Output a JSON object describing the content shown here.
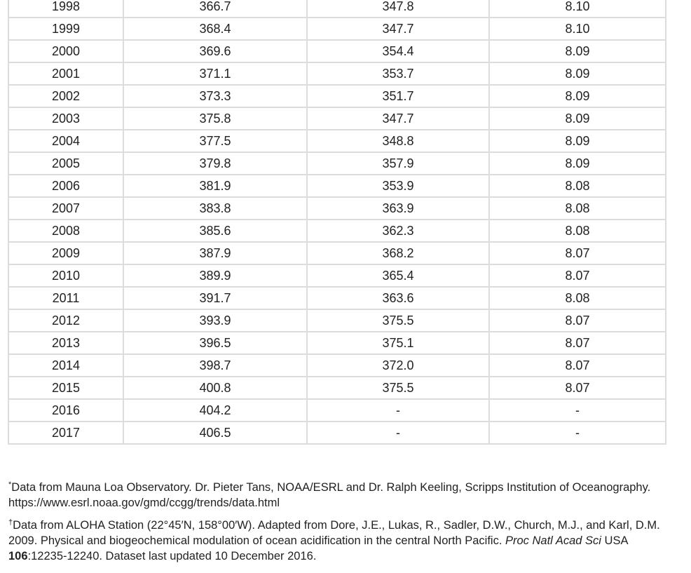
{
  "table": {
    "rows": [
      [
        "1998",
        "366.7",
        "347.8",
        "8.10"
      ],
      [
        "1999",
        "368.4",
        "347.7",
        "8.10"
      ],
      [
        "2000",
        "369.6",
        "354.4",
        "8.09"
      ],
      [
        "2001",
        "371.1",
        "353.7",
        "8.09"
      ],
      [
        "2002",
        "373.3",
        "351.7",
        "8.09"
      ],
      [
        "2003",
        "375.8",
        "347.7",
        "8.09"
      ],
      [
        "2004",
        "377.5",
        "348.8",
        "8.09"
      ],
      [
        "2005",
        "379.8",
        "357.9",
        "8.09"
      ],
      [
        "2006",
        "381.9",
        "353.9",
        "8.08"
      ],
      [
        "2007",
        "383.8",
        "363.9",
        "8.08"
      ],
      [
        "2008",
        "385.6",
        "362.3",
        "8.08"
      ],
      [
        "2009",
        "387.9",
        "368.2",
        "8.07"
      ],
      [
        "2010",
        "389.9",
        "365.4",
        "8.07"
      ],
      [
        "2011",
        "391.7",
        "363.6",
        "8.08"
      ],
      [
        "2012",
        "393.9",
        "375.5",
        "8.07"
      ],
      [
        "2013",
        "396.5",
        "375.1",
        "8.07"
      ],
      [
        "2014",
        "398.7",
        "372.0",
        "8.07"
      ],
      [
        "2015",
        "400.8",
        "375.5",
        "8.07"
      ],
      [
        "2016",
        "404.2",
        "-",
        "-"
      ],
      [
        "2017",
        "406.5",
        "-",
        "-"
      ]
    ]
  },
  "footnotes": {
    "mauna_loa": {
      "marker": "*",
      "text": "Data from Mauna Loa Observatory. Dr. Pieter Tans, NOAA/ESRL and Dr. Ralph Keeling, Scripps Institution of Oceanography. https://www.esrl.noaa.gov/gmd/ccgg/trends/data.html"
    },
    "aloha": {
      "marker": "†",
      "text_1": "Data from ALOHA Station (22°45′N, 158°00′W). Adapted from Dore, J.E., Lukas, R., Sadler, D.W., Church, M.J., and Karl, D.M. 2009. Physical and biogeochemical modulation of ocean acidification in the central North Pacific. ",
      "journal": "Proc Natl Acad Sci",
      "text_2": " USA ",
      "volume": "106",
      "text_3": ":12235-12240. Dataset last updated 10 December 2016."
    }
  }
}
